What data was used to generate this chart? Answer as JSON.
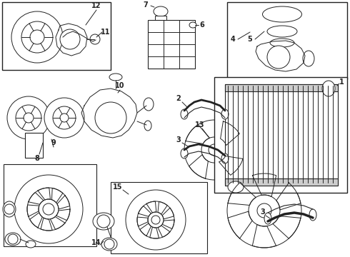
{
  "bg_color": "#ffffff",
  "line_color": "#222222",
  "fig_width": 4.9,
  "fig_height": 3.6,
  "dpi": 100
}
